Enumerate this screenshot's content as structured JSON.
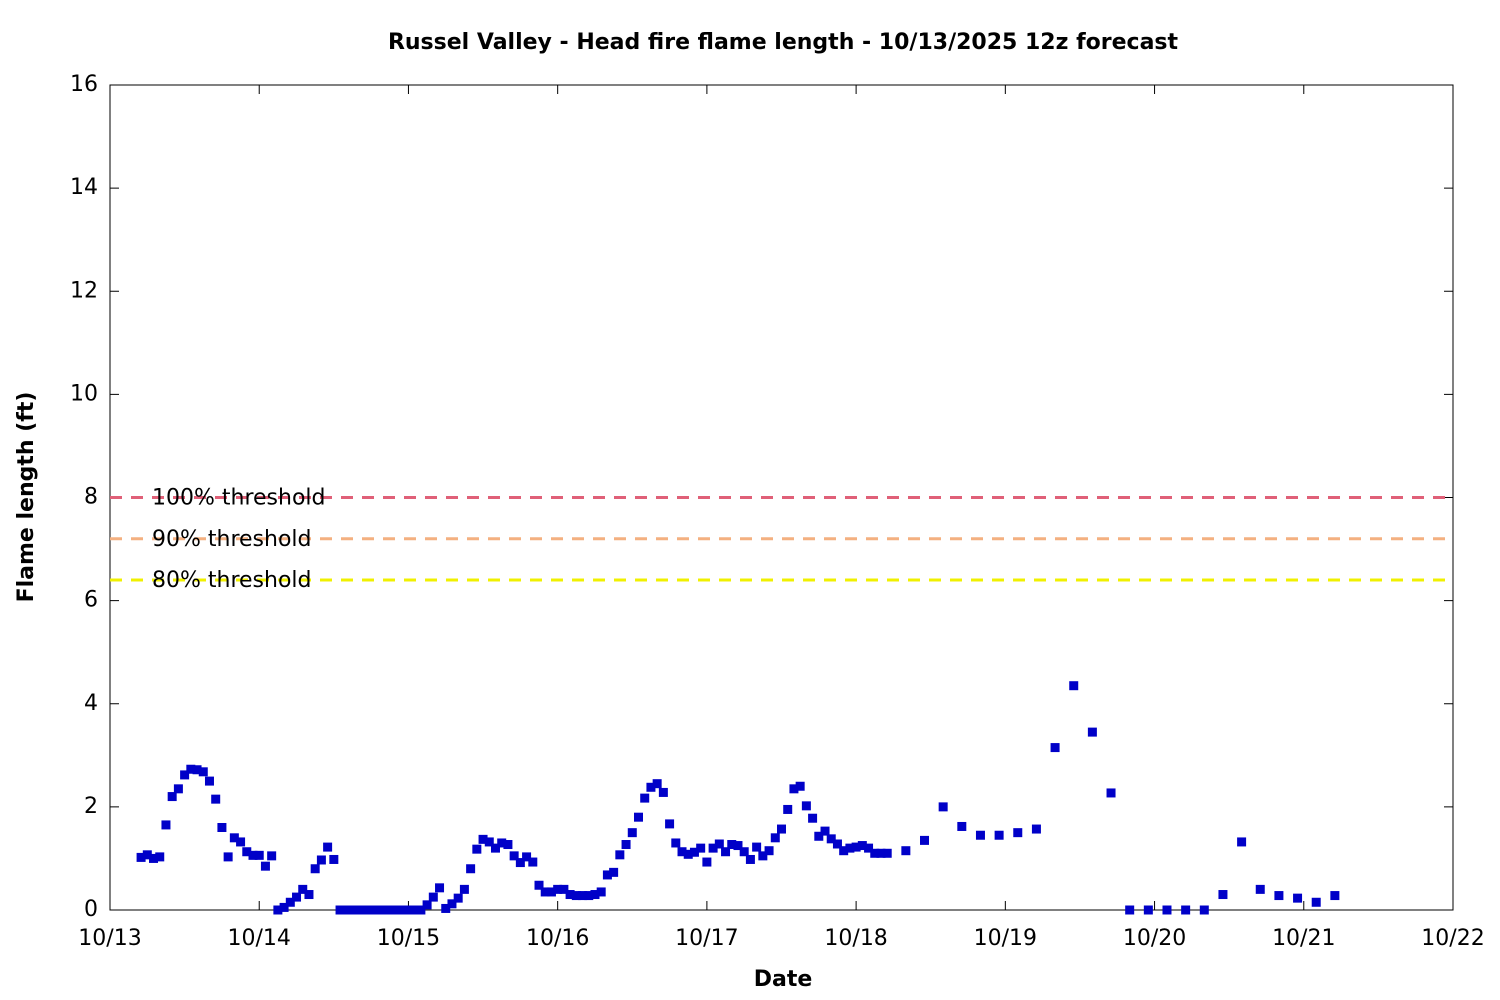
{
  "chart_data": {
    "type": "scatter",
    "title": "Russel Valley - Head fire flame length - 10/13/2025 12z forecast",
    "x_label": "Date",
    "y_label": "Flame length (ft)",
    "xlim": [
      0,
      216
    ],
    "xticks": [
      {
        "value": 0,
        "label": "10/13"
      },
      {
        "value": 24,
        "label": "10/14"
      },
      {
        "value": 48,
        "label": "10/15"
      },
      {
        "value": 72,
        "label": "10/16"
      },
      {
        "value": 96,
        "label": "10/17"
      },
      {
        "value": 120,
        "label": "10/18"
      },
      {
        "value": 144,
        "label": "10/19"
      },
      {
        "value": 168,
        "label": "10/20"
      },
      {
        "value": 192,
        "label": "10/21"
      },
      {
        "value": 216,
        "label": "10/22"
      }
    ],
    "ylim": [
      0,
      16
    ],
    "yticks": [
      0,
      2,
      4,
      6,
      8,
      10,
      12,
      14,
      16
    ],
    "color": "#0000c8",
    "thresholds": [
      {
        "label": "100% threshold",
        "value": 8,
        "color": "#e06078"
      },
      {
        "label": "90% threshold",
        "value": 7.2,
        "color": "#f4b080"
      },
      {
        "label": "80% threshold",
        "value": 6.4,
        "color": "#f0f000"
      }
    ],
    "x": [
      5,
      6,
      7,
      8,
      9,
      10,
      11,
      12,
      13,
      14,
      15,
      16,
      17,
      18,
      19,
      20,
      21,
      22,
      23,
      24,
      25,
      26,
      27,
      28,
      29,
      30,
      31,
      32,
      33,
      34,
      35,
      36,
      37,
      38,
      39,
      40,
      41,
      42,
      43,
      44,
      45,
      46,
      47,
      48,
      49,
      50,
      51,
      52,
      53,
      54,
      55,
      56,
      57,
      58,
      59,
      60,
      61,
      62,
      63,
      64,
      65,
      66,
      67,
      68,
      69,
      70,
      71,
      72,
      73,
      74,
      75,
      76,
      77,
      78,
      79,
      80,
      81,
      82,
      83,
      84,
      85,
      86,
      87,
      88,
      89,
      90,
      91,
      92,
      93,
      94,
      95,
      96,
      97,
      98,
      99,
      100,
      101,
      102,
      103,
      104,
      105,
      106,
      107,
      108,
      109,
      110,
      111,
      112,
      113,
      114,
      115,
      116,
      117,
      118,
      119,
      120,
      121,
      122,
      123,
      124,
      125,
      128,
      131,
      134,
      137,
      140,
      143,
      146,
      149,
      152,
      155,
      158,
      161,
      164,
      167,
      170,
      173,
      176,
      179,
      182,
      185,
      188,
      191,
      194,
      197
    ],
    "values": [
      1.02,
      1.07,
      1.0,
      1.03,
      1.65,
      2.2,
      2.35,
      2.62,
      2.73,
      2.72,
      2.68,
      2.5,
      2.15,
      1.6,
      1.03,
      1.4,
      1.32,
      1.13,
      1.06,
      1.06,
      0.85,
      1.05,
      0,
      0.05,
      0.15,
      0.25,
      0.4,
      0.3,
      0.8,
      0.97,
      1.22,
      0.98,
      0,
      0,
      0,
      0,
      0,
      0,
      0,
      0,
      0,
      0,
      0,
      0,
      0,
      0,
      0.1,
      0.25,
      0.43,
      0.03,
      0.12,
      0.23,
      0.4,
      0.8,
      1.18,
      1.37,
      1.32,
      1.2,
      1.3,
      1.27,
      1.05,
      0.92,
      1.03,
      0.93,
      0.48,
      0.35,
      0.35,
      0.4,
      0.4,
      0.3,
      0.28,
      0.28,
      0.28,
      0.3,
      0.35,
      0.68,
      0.73,
      1.07,
      1.27,
      1.5,
      1.8,
      2.17,
      2.38,
      2.45,
      2.28,
      1.67,
      1.3,
      1.13,
      1.08,
      1.12,
      1.2,
      0.93,
      1.2,
      1.28,
      1.13,
      1.27,
      1.25,
      1.13,
      0.98,
      1.22,
      1.05,
      1.15,
      1.4,
      1.57,
      1.95,
      2.35,
      2.4,
      2.02,
      1.78,
      1.43,
      1.53,
      1.38,
      1.28,
      1.15,
      1.2,
      1.22,
      1.25,
      1.2,
      1.1,
      1.1,
      1.1,
      1.15,
      1.35,
      2.0,
      1.62,
      1.45,
      1.45,
      1.5,
      1.57,
      3.15,
      4.35,
      3.45,
      2.27,
      0,
      0,
      0,
      0,
      0,
      0.3,
      1.32,
      0.4,
      0.28,
      0.23,
      0.15,
      0.28
    ]
  }
}
